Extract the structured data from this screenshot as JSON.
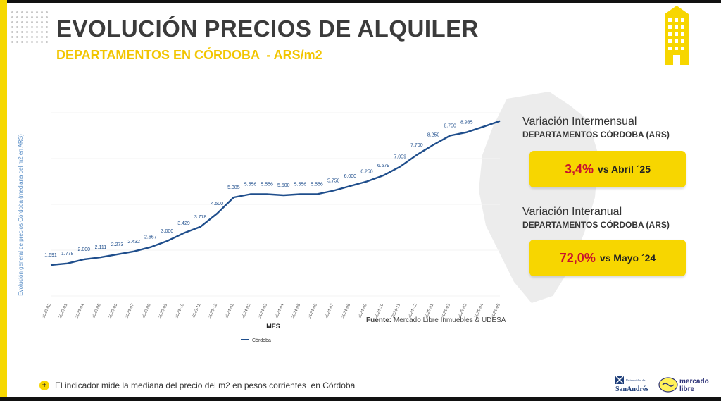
{
  "header": {
    "title": "EVOLUCIÓN PRECIOS DE ALQUILER",
    "subtitle": "DEPARTAMENTOS EN CÓRDOBA  - ARS/m2"
  },
  "colors": {
    "accent_yellow": "#f7d600",
    "title_gray": "#3b3b3b",
    "line_blue": "#1f4e8c",
    "highlight_red": "#c8102e"
  },
  "chart_data": {
    "type": "line",
    "ylabel": "Evolución general de precios Córdoba (mediana del m2 en ARS)",
    "xlabel": "MES",
    "ylim": [
      0,
      10000
    ],
    "legend": "bottom-left",
    "categories": [
      "2023-02",
      "2023-03",
      "2023-04",
      "2023-05",
      "2023-06",
      "2023-07",
      "2023-08",
      "2023-09",
      "2023-10",
      "2023-11",
      "2023-12",
      "2024-01",
      "2024-02",
      "2024-03",
      "2024-04",
      "2024-05",
      "2024-06",
      "2024-07",
      "2024-08",
      "2024-09",
      "2024-10",
      "2024-11",
      "2024-12",
      "2025-01",
      "2025-02",
      "2025-03",
      "2025-04",
      "2025-05"
    ],
    "series": [
      {
        "name": "Córdoba",
        "values": [
          1691,
          1778,
          2000,
          2111,
          2273,
          2432,
          2667,
          3000,
          3429,
          3778,
          4500,
          5385,
          5556,
          5556,
          5500,
          5556,
          5556,
          5750,
          6000,
          6250,
          6579,
          7059,
          7700,
          8250,
          8750,
          8935,
          9240,
          9550
        ],
        "labels": [
          "1.691",
          "1.778",
          "2.000",
          "2.111",
          "2.273",
          "2.432",
          "2.667",
          "3.000",
          "3.429",
          "3.778",
          "4.500",
          "5.385",
          "5.556",
          "5.556",
          "5.500",
          "5.556",
          "5.556",
          "5.750",
          "6.000",
          "6.250",
          "6.579",
          "7.059",
          "7.700",
          "8.250",
          "8.750",
          "8.935",
          "",
          ""
        ]
      }
    ]
  },
  "source": {
    "label": "Fuente:",
    "text": "Mercado Libre Inmuebles & UDESA"
  },
  "panels": [
    {
      "title": "Variación Intermensual",
      "subtitle": "DEPARTAMENTOS CÓRDOBA (ARS)",
      "pct": "3,4%",
      "vs": "vs Abril ´25"
    },
    {
      "title": "Variación Interanual",
      "subtitle": "DEPARTAMENTOS CÓRDOBA (ARS)",
      "pct": "72,0%",
      "vs": "vs Mayo ´24"
    }
  ],
  "footer": {
    "icon": "plus-icon",
    "icon_glyph": "+",
    "text": "El indicador mide la mediana del precio del m2 en pesos corrientes  en Córdoba"
  },
  "logos": {
    "udesa_top": "Universidad de",
    "udesa_main": "SanAndrés",
    "ml_top": "mercado",
    "ml_bottom": "libre"
  }
}
